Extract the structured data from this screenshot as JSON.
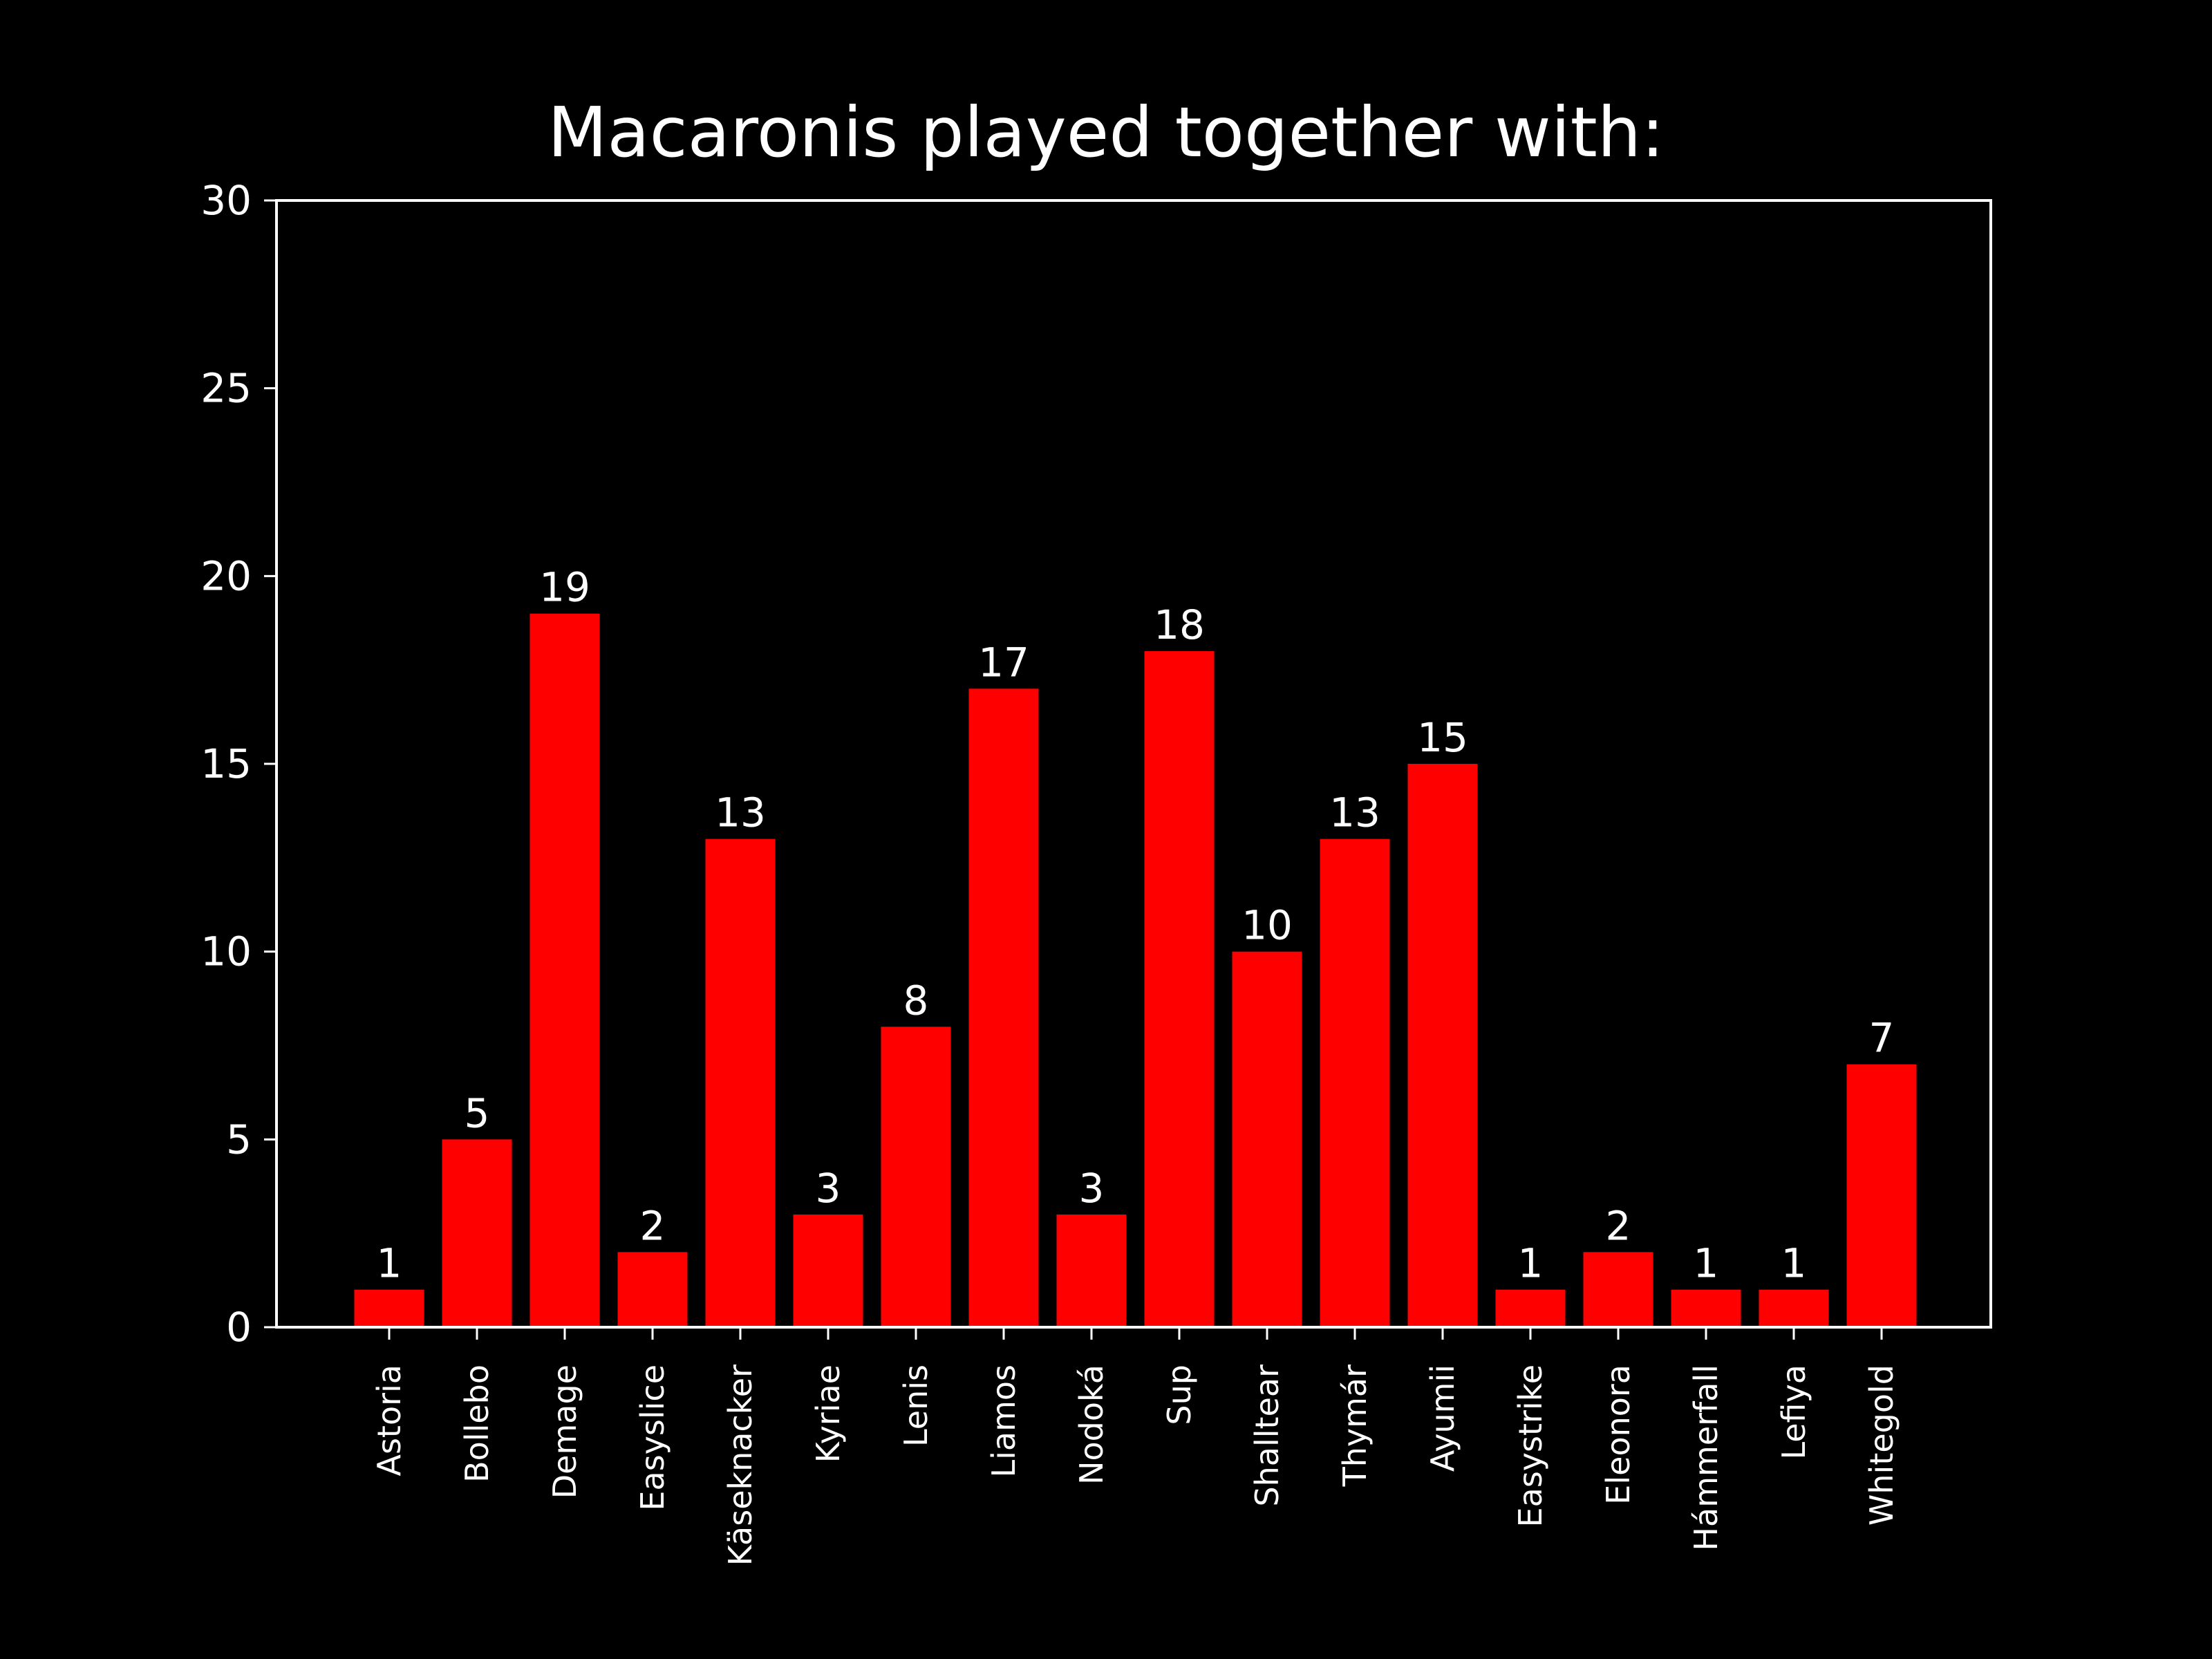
{
  "chart_data": {
    "type": "bar",
    "title": "Macaronis played together with:",
    "xlabel": "",
    "ylabel": "",
    "categories": [
      "Astoria",
      "Bollebo",
      "Demage",
      "Easyslice",
      "Käseknacker",
      "Kyriae",
      "Lenis",
      "Liamos",
      "Nodoká",
      "Sup",
      "Shalltear",
      "Thymár",
      "Ayumii",
      "Easystrike",
      "Eleonora",
      "Hámmerfall",
      "Lefiya",
      "Whitegold"
    ],
    "values": [
      1,
      5,
      19,
      2,
      13,
      3,
      8,
      17,
      3,
      18,
      10,
      13,
      15,
      1,
      2,
      1,
      1,
      7
    ],
    "ylim": [
      0,
      30
    ],
    "yticks": [
      0,
      5,
      10,
      15,
      20,
      25,
      30
    ],
    "grid": false,
    "data_labels": true,
    "colors": {
      "background": "#000000",
      "bar": "#ff0000",
      "text": "#ffffff",
      "axis": "#ffffff"
    }
  }
}
